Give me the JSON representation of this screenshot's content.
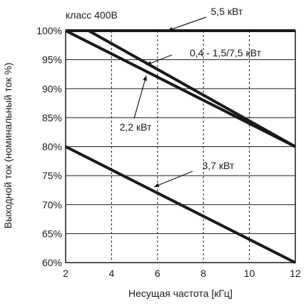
{
  "chart_data": {
    "type": "line",
    "title": "класс 400В",
    "xlabel": "Несущая частота [кГц]",
    "ylabel": "Выходной ток (номинальный ток %)",
    "xlim": [
      2,
      12
    ],
    "ylim": [
      60,
      100
    ],
    "x_ticks": [
      2,
      4,
      6,
      8,
      10,
      12
    ],
    "y_ticks": [
      60,
      65,
      70,
      75,
      80,
      85,
      90,
      95,
      100
    ],
    "x_tick_labels": [
      "2",
      "4",
      "6",
      "8",
      "10",
      "12"
    ],
    "y_tick_labels": [
      "60%",
      "65%",
      "70%",
      "75%",
      "80%",
      "85%",
      "90%",
      "95%",
      "100%"
    ],
    "grid": {
      "x": "dashed",
      "y": "solid"
    },
    "series": [
      {
        "name": "5,5 кВт",
        "x": [
          2,
          12
        ],
        "y": [
          100,
          100
        ]
      },
      {
        "name": "0,4 - 1,5/7,5 кВт",
        "x": [
          3,
          12
        ],
        "y": [
          100,
          80
        ]
      },
      {
        "name": "2,2 кВт",
        "x": [
          2,
          12
        ],
        "y": [
          100,
          80
        ]
      },
      {
        "name": "3,7 кВт",
        "x": [
          2,
          12
        ],
        "y": [
          80,
          60
        ]
      }
    ]
  }
}
